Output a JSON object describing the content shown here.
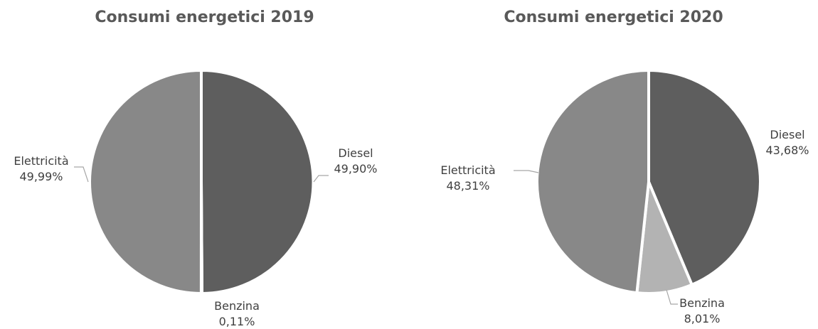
{
  "chart_data": [
    {
      "type": "pie",
      "title": "Consumi energetici 2019",
      "labels": [
        "Diesel",
        "Benzina",
        "Elettricità"
      ],
      "values": [
        49.9,
        0.11,
        49.99
      ],
      "value_labels": [
        "49,90%",
        "0,11%",
        "49,99%"
      ],
      "colors": [
        "#5e5e5e",
        "#b3b3b3",
        "#888888"
      ]
    },
    {
      "type": "pie",
      "title": "Consumi energetici 2020",
      "labels": [
        "Diesel",
        "Benzina",
        "Elettricità"
      ],
      "values": [
        43.68,
        8.01,
        48.31
      ],
      "value_labels": [
        "43,68%",
        "8,01%",
        "48,31%"
      ],
      "colors": [
        "#5e5e5e",
        "#b3b3b3",
        "#888888"
      ]
    }
  ]
}
